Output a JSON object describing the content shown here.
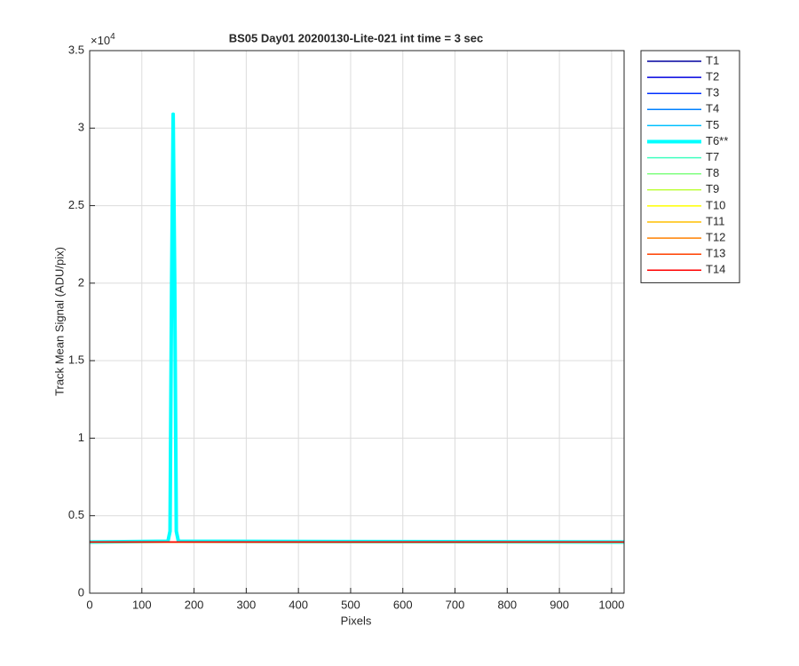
{
  "chart_data": {
    "type": "line",
    "title": "BS05 Day01 20200130-Lite-021 int time = 3 sec",
    "x_label": "Pixels",
    "y_label": "Track Mean Signal (ADU/pix)",
    "y_multiplier": "×10",
    "y_multiplier_exponent": 4,
    "x": [
      0,
      150,
      154,
      157,
      160,
      163,
      166,
      170,
      1024
    ],
    "series": [
      {
        "name": "T1",
        "color": "#00009f",
        "width": 1.5,
        "values": [
          3300,
          3300,
          3300,
          3300,
          3300,
          3300,
          3300,
          3300,
          3300
        ]
      },
      {
        "name": "T2",
        "color": "#0000df",
        "width": 1.5,
        "values": [
          3300,
          3300,
          3300,
          3300,
          3300,
          3300,
          3300,
          3300,
          3300
        ]
      },
      {
        "name": "T3",
        "color": "#0030ff",
        "width": 1.5,
        "values": [
          3300,
          3300,
          3300,
          3300,
          3300,
          3300,
          3300,
          3300,
          3300
        ]
      },
      {
        "name": "T4",
        "color": "#0080ff",
        "width": 1.5,
        "values": [
          3300,
          3300,
          3300,
          3300,
          3300,
          3300,
          3300,
          3300,
          3300
        ]
      },
      {
        "name": "T5",
        "color": "#00c0ff",
        "width": 1.5,
        "values": [
          3300,
          3300,
          3300,
          3300,
          3300,
          3300,
          3300,
          3300,
          3300
        ]
      },
      {
        "name": "T6**",
        "color": "#00ffff",
        "width": 4,
        "values": [
          3300,
          3350,
          4000,
          20000,
          30900,
          20000,
          4000,
          3350,
          3300
        ]
      },
      {
        "name": "T7",
        "color": "#40ffbf",
        "width": 1.5,
        "values": [
          3300,
          3300,
          3300,
          3300,
          3300,
          3300,
          3300,
          3300,
          3300
        ]
      },
      {
        "name": "T8",
        "color": "#80ff80",
        "width": 1.5,
        "values": [
          3300,
          3300,
          3300,
          3300,
          3300,
          3300,
          3300,
          3300,
          3300
        ]
      },
      {
        "name": "T9",
        "color": "#bfff40",
        "width": 1.5,
        "values": [
          3300,
          3300,
          3300,
          3300,
          3300,
          3300,
          3300,
          3300,
          3300
        ]
      },
      {
        "name": "T10",
        "color": "#ffff00",
        "width": 1.5,
        "values": [
          3300,
          3300,
          3300,
          3300,
          3300,
          3300,
          3300,
          3300,
          3300
        ]
      },
      {
        "name": "T11",
        "color": "#ffbf00",
        "width": 1.5,
        "values": [
          3300,
          3300,
          3300,
          3300,
          3300,
          3300,
          3300,
          3300,
          3300
        ]
      },
      {
        "name": "T12",
        "color": "#ff8000",
        "width": 1.5,
        "values": [
          3300,
          3300,
          3300,
          3300,
          3300,
          3300,
          3300,
          3300,
          3300
        ]
      },
      {
        "name": "T13",
        "color": "#ff4000",
        "width": 1.5,
        "values": [
          3300,
          3300,
          3300,
          3300,
          3300,
          3300,
          3300,
          3300,
          3300
        ]
      },
      {
        "name": "T14",
        "color": "#ff0000",
        "width": 1.5,
        "values": [
          3300,
          3300,
          3300,
          3300,
          3300,
          3300,
          3300,
          3300,
          3300
        ]
      }
    ],
    "xlim": [
      0,
      1024
    ],
    "xticks": [
      0,
      100,
      200,
      300,
      400,
      500,
      600,
      700,
      800,
      900,
      1000
    ],
    "ylim": [
      0,
      35000
    ],
    "yticks": [
      {
        "value": 0,
        "label": "0"
      },
      {
        "value": 5000,
        "label": "0.5"
      },
      {
        "value": 10000,
        "label": "1"
      },
      {
        "value": 15000,
        "label": "1.5"
      },
      {
        "value": 20000,
        "label": "2"
      },
      {
        "value": 25000,
        "label": "2.5"
      },
      {
        "value": 30000,
        "label": "3"
      },
      {
        "value": 35000,
        "label": "3.5"
      }
    ],
    "grid": true,
    "legend": "outside-right"
  }
}
